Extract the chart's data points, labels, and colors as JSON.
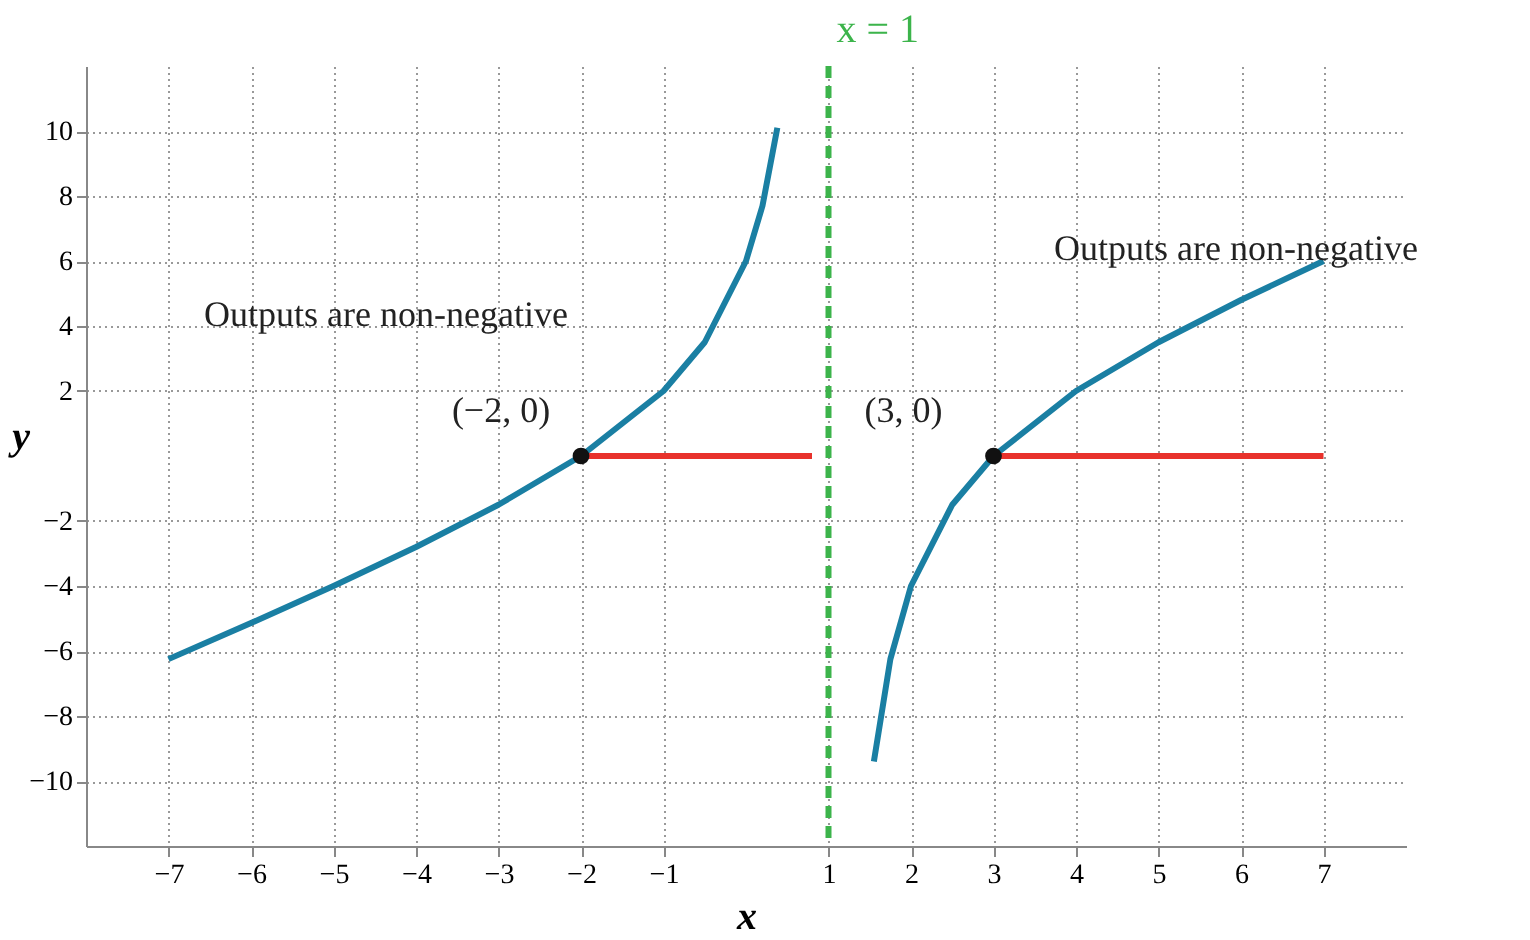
{
  "chart_data": {
    "type": "line",
    "xlabel": "x",
    "ylabel": "y",
    "xlim": [
      -8,
      8
    ],
    "ylim": [
      -12,
      12
    ],
    "xticks": [
      {
        "value": -7,
        "label": "−7"
      },
      {
        "value": -6,
        "label": "−6"
      },
      {
        "value": -5,
        "label": "−5"
      },
      {
        "value": -4,
        "label": "−4"
      },
      {
        "value": -3,
        "label": "−3"
      },
      {
        "value": -2,
        "label": "−2"
      },
      {
        "value": -1,
        "label": "−1"
      },
      1,
      2,
      3,
      4,
      5,
      6,
      7
    ],
    "yticks": [
      {
        "value": -10,
        "label": "−10"
      },
      {
        "value": -8,
        "label": "−8"
      },
      {
        "value": -6,
        "label": "−6"
      },
      {
        "value": -4,
        "label": "−4"
      },
      {
        "value": -2,
        "label": "−2"
      },
      2,
      4,
      6,
      8,
      10
    ],
    "grid": true,
    "line_style": "solid",
    "series": [
      {
        "color": "#1a7fa3",
        "x": [
          -7,
          -6,
          -5,
          -4,
          -3,
          -2,
          -1,
          -0.5,
          0,
          0.2,
          0.38
        ],
        "values": [
          -6.25,
          -5.14,
          -4,
          -2.8,
          -1.5,
          0,
          2,
          3.5,
          6,
          7.7,
          10.1
        ]
      },
      {
        "color": "#1a7fa3",
        "x": [
          1.55,
          1.75,
          2,
          2.5,
          3,
          4,
          5,
          6,
          7
        ],
        "values": [
          -9.4,
          -6.25,
          -4,
          -1.5,
          0,
          2,
          3.5,
          4.8,
          6
        ]
      },
      {
        "color": "#e8322c",
        "x": [
          -2,
          0.8
        ],
        "values": [
          0,
          0
        ]
      },
      {
        "color": "#e8322c",
        "x": [
          3,
          7
        ],
        "values": [
          0,
          0
        ]
      },
      {
        "type": "scatter",
        "color": "#111111",
        "x": [
          -2,
          3
        ],
        "values": [
          0,
          0
        ]
      }
    ],
    "ref_lines": [
      {
        "axis": "x",
        "value": 1,
        "label": "x = 1",
        "color": "#3cb44b",
        "line_style": "dashed"
      }
    ],
    "annotations": [
      "Outputs are non-negative",
      "Outputs are non-negative",
      {
        "text": "(−2, 0)",
        "x": -2,
        "y": 0
      },
      {
        "text": "(3, 0)",
        "x": 3,
        "y": 0
      }
    ]
  }
}
